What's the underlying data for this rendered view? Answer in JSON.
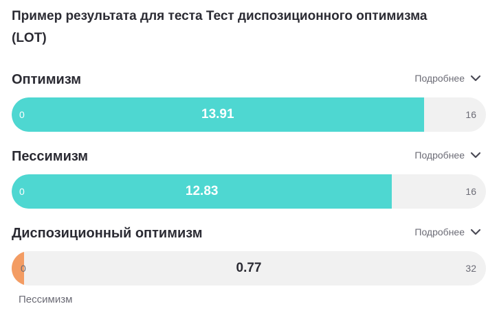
{
  "title": "Пример результата для теста Тест диспозиционного оптимизма (LOT)",
  "colors": {
    "teal": "#4ed7d1",
    "orange": "#f39c63",
    "track": "#f1f1f1",
    "text": "#2b2b33",
    "muted": "#6b6b75"
  },
  "scales": [
    {
      "name": "Оптимизм",
      "details_label": "Подробнее",
      "min": "0",
      "max": "16",
      "value": "13.91",
      "fill_fraction": 0.869,
      "fill_color": "teal"
    },
    {
      "name": "Пессимизм",
      "details_label": "Подробнее",
      "min": "0",
      "max": "16",
      "value": "12.83",
      "fill_fraction": 0.802,
      "fill_color": "teal"
    },
    {
      "name": "Диспозиционный оптимизм",
      "details_label": "Подробнее",
      "min": "0",
      "max": "32",
      "value": "0.77",
      "fill_fraction": 0.024,
      "fill_color": "orange",
      "pole_label": "Пессимизм"
    }
  ]
}
